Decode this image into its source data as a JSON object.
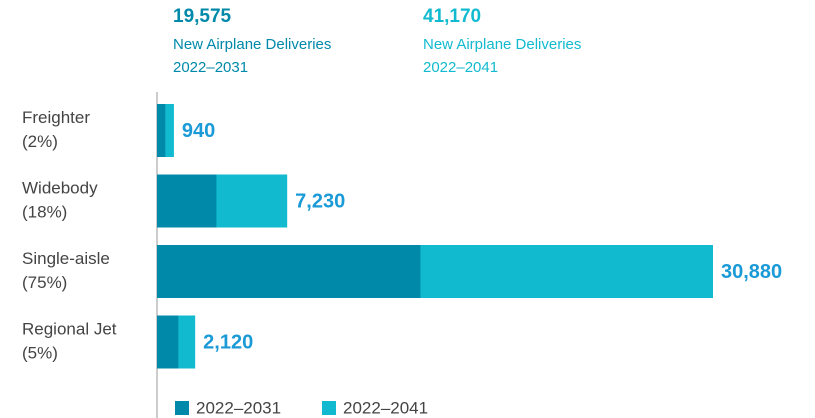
{
  "chart_data": {
    "type": "overlay-bar",
    "headers": [
      {
        "total": "19,575",
        "text": "New Airplane Deliveries",
        "period": "2022–2031"
      },
      {
        "total": "41,170",
        "text": "New Airplane Deliveries",
        "period": "2022–2041"
      }
    ],
    "categories": [
      "Freighter",
      "Widebody",
      "Single-aisle",
      "Regional Jet"
    ],
    "category_shares": [
      "(2%)",
      "(18%)",
      "(75%)",
      "(5%)"
    ],
    "series": [
      {
        "name": "2022–2031",
        "color": "#0089a9",
        "values": [
          460,
          3300,
          14630,
          1185
        ]
      },
      {
        "name": "2022–2041",
        "color": "#12bacf",
        "values": [
          940,
          7230,
          30880,
          2120
        ],
        "value_labels": [
          "940",
          "7,230",
          "30,880",
          "2,120"
        ]
      }
    ]
  }
}
